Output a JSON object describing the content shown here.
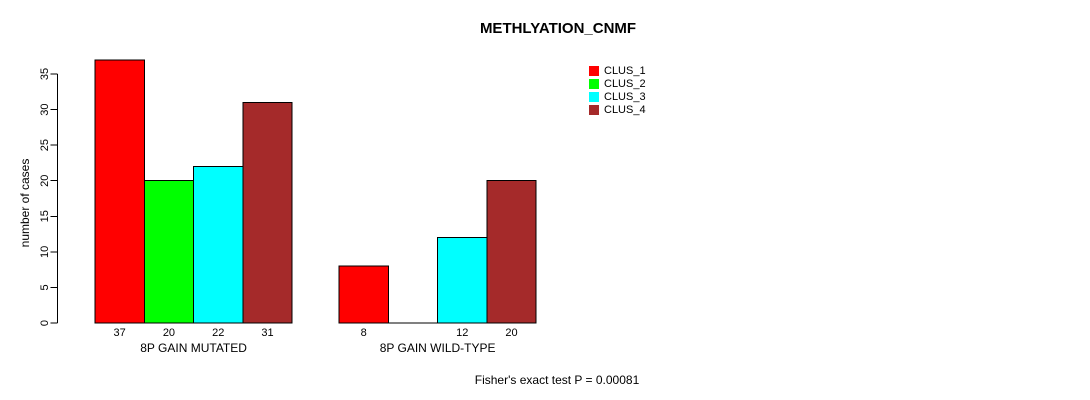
{
  "page": {
    "background": "#ffffff",
    "text_color": "#000000"
  },
  "chart_data": {
    "type": "bar",
    "title": "METHLYATION_CNMF",
    "ylabel": "number of cases",
    "xlabel": "",
    "footer": "Fisher's exact test P = 0.00081",
    "yticks": [
      0,
      5,
      10,
      15,
      20,
      25,
      30,
      35
    ],
    "ylim": [
      0,
      37
    ],
    "grid": false,
    "legend_position": "top-right",
    "bar_outline_color": "#000000",
    "series": [
      {
        "name": "CLUS_1",
        "color": "#FF0000"
      },
      {
        "name": "CLUS_2",
        "color": "#00FF00"
      },
      {
        "name": "CLUS_3",
        "color": "#00FFFF"
      },
      {
        "name": "CLUS_4",
        "color": "#A52A2A"
      }
    ],
    "groups": [
      {
        "label": "8P GAIN MUTATED",
        "values": [
          37,
          20,
          22,
          31
        ],
        "bar_labels": [
          "37",
          "20",
          "22",
          "31"
        ]
      },
      {
        "label": "8P GAIN WILD-TYPE",
        "values": [
          8,
          0,
          12,
          20
        ],
        "bar_labels": [
          "8",
          "",
          "12",
          "20"
        ]
      }
    ]
  }
}
